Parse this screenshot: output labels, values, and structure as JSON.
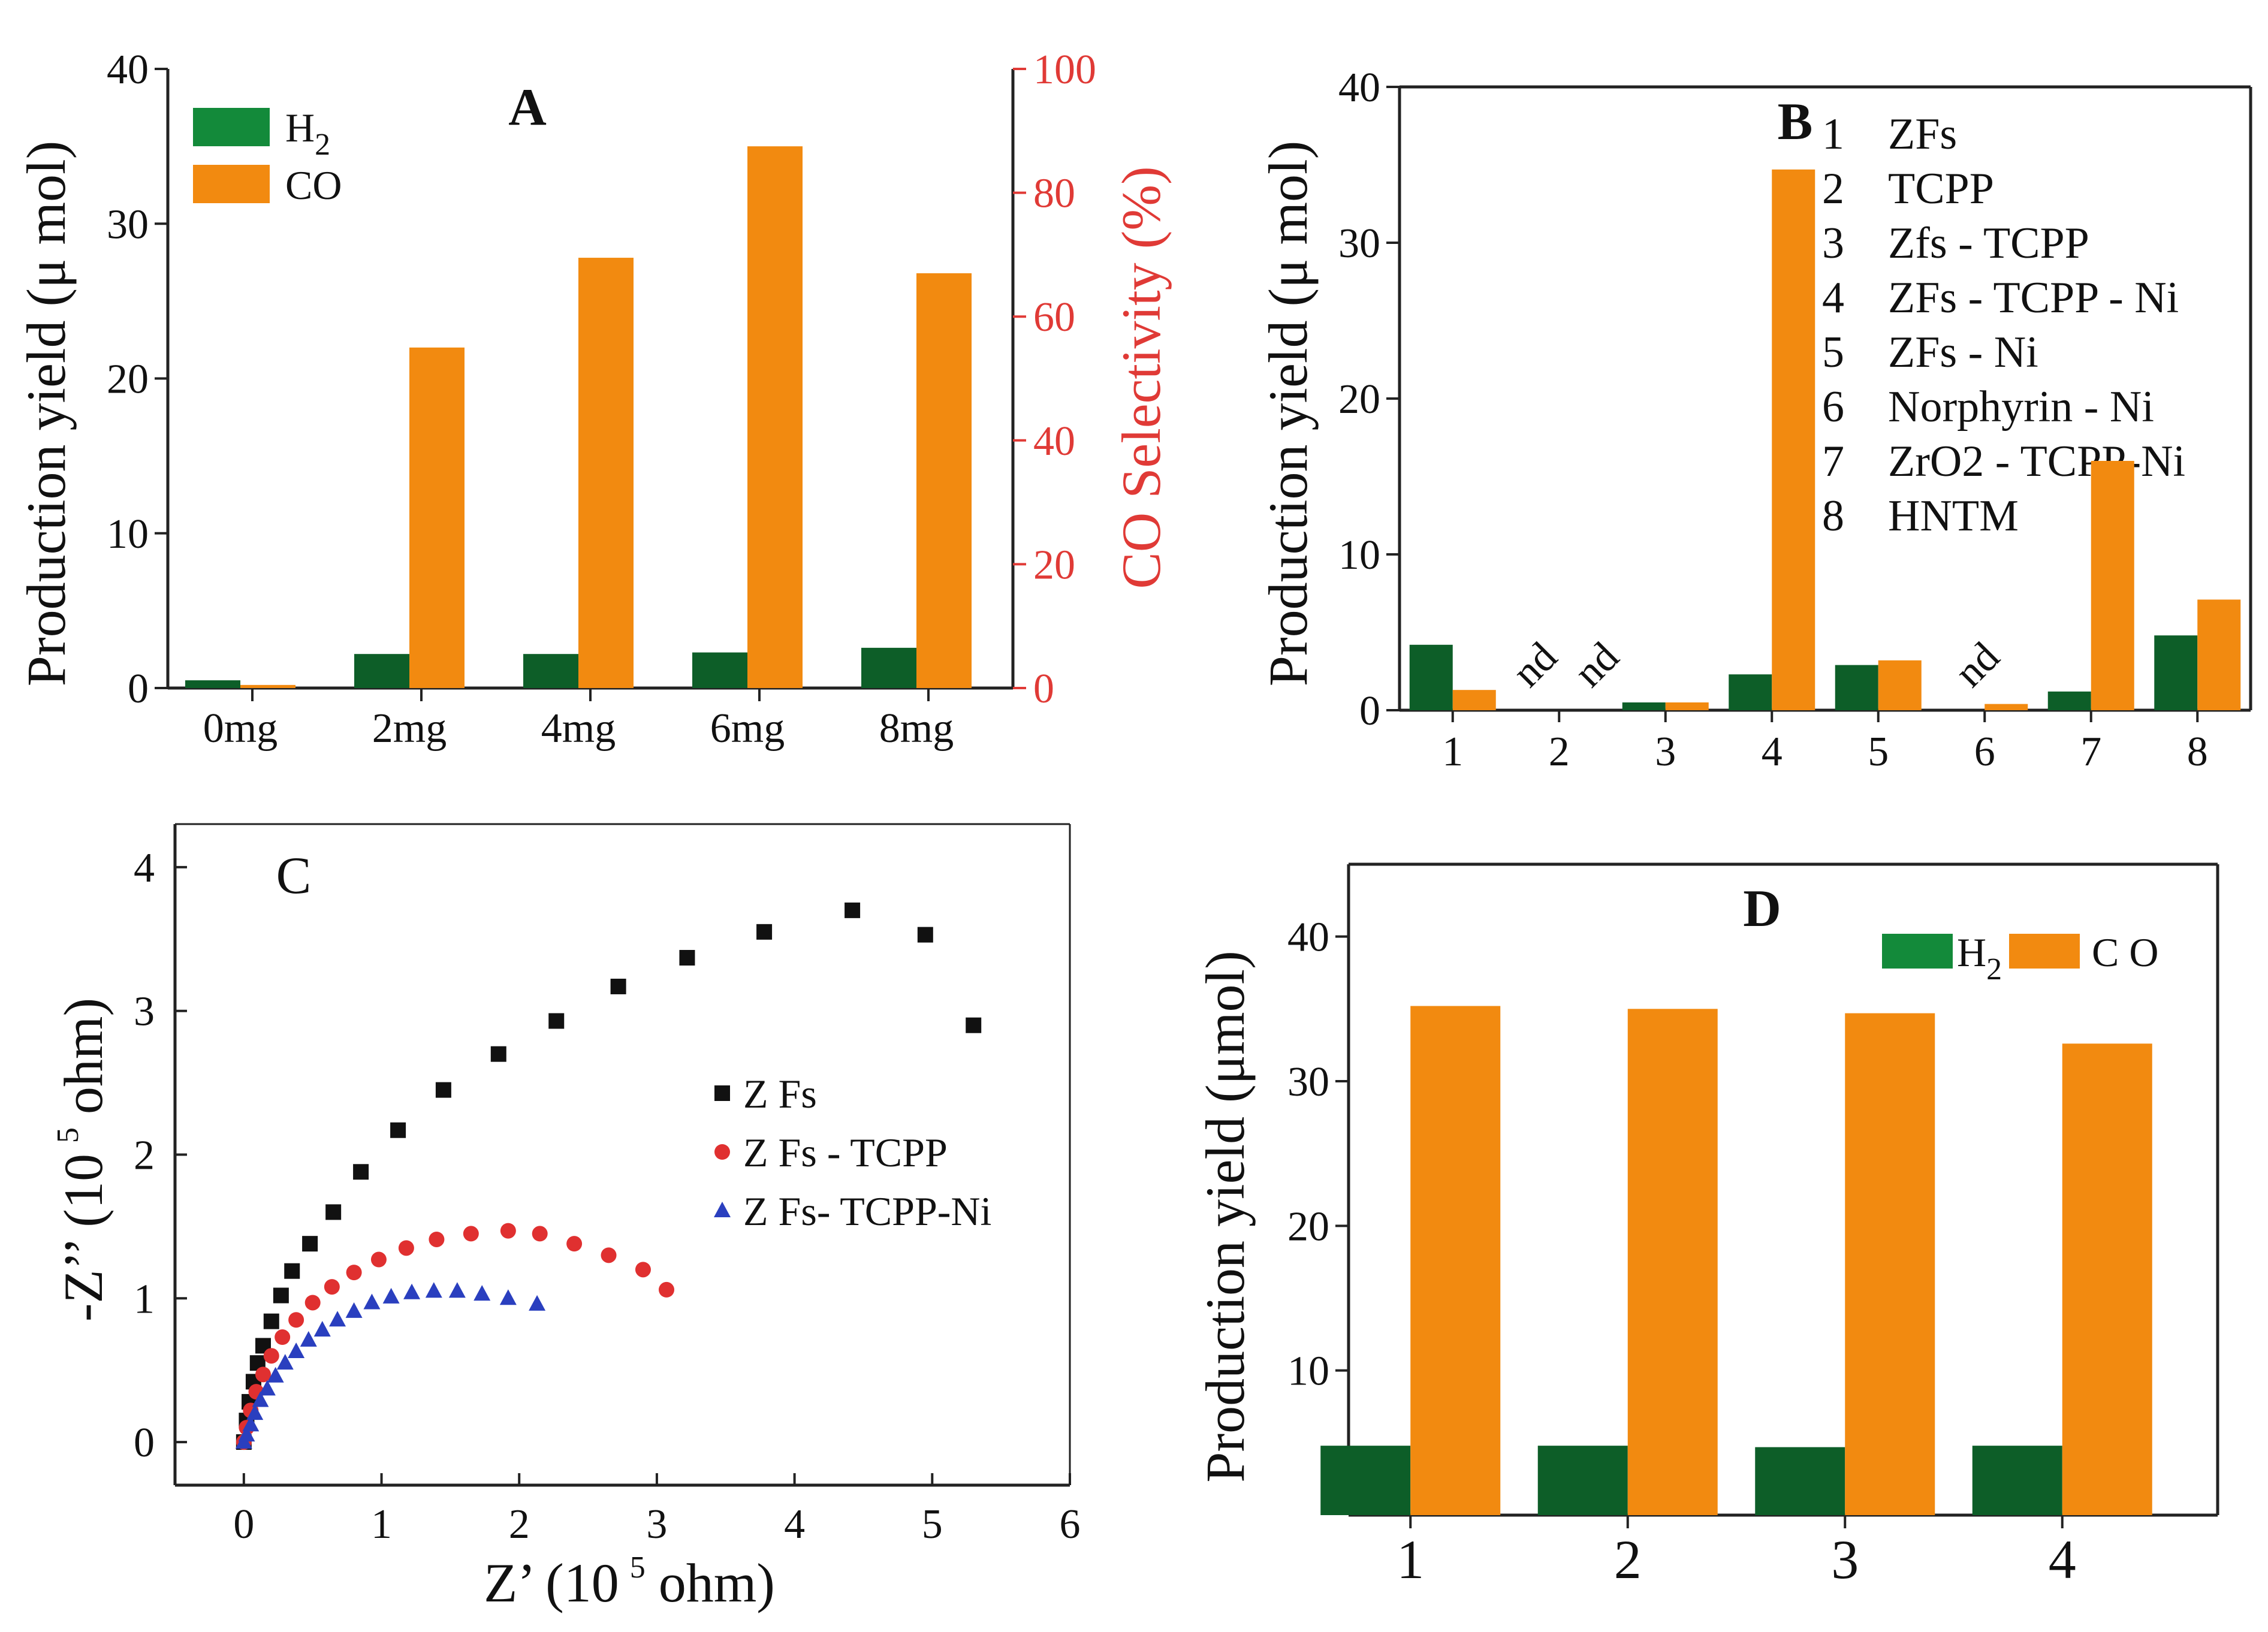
{
  "colors": {
    "h2": "#138a3a",
    "h2_dark": "#0d5e28",
    "co": "#f28a10",
    "selectivity_axis": "#e03a36",
    "zfs": "#111111",
    "tcpp": "#e03030",
    "tcpp_ni": "#2a3fbf"
  },
  "chart_data": [
    {
      "panel": "A",
      "type": "bar",
      "label": "A",
      "categories": [
        "0mg",
        "2mg",
        "4mg",
        "6mg",
        "8mg"
      ],
      "series": [
        {
          "name": "H",
          "sub": "2",
          "key": "h2",
          "values": [
            0.5,
            2.2,
            2.2,
            2.3,
            2.6
          ]
        },
        {
          "name": "CO",
          "key": "co",
          "values": [
            0.2,
            22.0,
            27.8,
            35.0,
            26.8
          ]
        }
      ],
      "ylabel": "Production yield  (μ mol)",
      "ylim": [
        0,
        40
      ],
      "yticks": [
        "0",
        "10",
        "20",
        "30",
        "40"
      ],
      "y2label": "CO Selectivity  (%)",
      "y2lim": [
        0,
        100
      ],
      "y2ticks": [
        "0",
        "20",
        "40",
        "60",
        "80",
        "100"
      ]
    },
    {
      "panel": "B",
      "type": "bar",
      "label": "B",
      "categories": [
        "1",
        "2",
        "3",
        "4",
        "5",
        "6",
        "7",
        "8"
      ],
      "series": [
        {
          "name": "H2",
          "key": "h2",
          "values": [
            4.2,
            0,
            0.5,
            2.3,
            2.9,
            0,
            1.2,
            4.8
          ]
        },
        {
          "name": "CO",
          "key": "co",
          "values": [
            1.3,
            0,
            0.5,
            34.7,
            3.2,
            0.4,
            16.0,
            7.1
          ]
        }
      ],
      "annotations": [
        "nd",
        "nd",
        "nd"
      ],
      "legend": [
        {
          "num": "1",
          "name": "ZFs"
        },
        {
          "num": "2",
          "name": "TCPP"
        },
        {
          "num": "3",
          "name": "Zfs - TCPP"
        },
        {
          "num": "4",
          "name": "ZFs - TCPP - Ni"
        },
        {
          "num": "5",
          "name": "ZFs - Ni"
        },
        {
          "num": "6",
          "name": "Norphyrin - Ni"
        },
        {
          "num": "7",
          "name": "ZrO2 - TCPP-Ni"
        },
        {
          "num": "8",
          "name": "HNTM"
        }
      ],
      "ylabel": "Production yield  (μ mol)",
      "ylim": [
        0,
        40
      ],
      "yticks": [
        "0",
        "10",
        "20",
        "30",
        "40"
      ]
    },
    {
      "panel": "C",
      "type": "scatter",
      "label": "C",
      "series": [
        {
          "name": "Z Fs",
          "key": "zfs",
          "marker": "square",
          "x": [
            0.0,
            0.02,
            0.04,
            0.07,
            0.1,
            0.14,
            0.2,
            0.27,
            0.35,
            0.48,
            0.65,
            0.85,
            1.12,
            1.45,
            1.85,
            2.27,
            2.72,
            3.22,
            3.78,
            4.42,
            4.95,
            5.3
          ],
          "y": [
            0.0,
            0.15,
            0.28,
            0.42,
            0.55,
            0.67,
            0.84,
            1.02,
            1.19,
            1.38,
            1.6,
            1.88,
            2.17,
            2.45,
            2.7,
            2.93,
            3.17,
            3.37,
            3.55,
            3.7,
            3.53,
            2.9
          ]
        },
        {
          "name": "Z Fs - TCPP",
          "key": "tcpp",
          "marker": "circle",
          "x": [
            0.0,
            0.02,
            0.05,
            0.09,
            0.14,
            0.2,
            0.28,
            0.38,
            0.5,
            0.64,
            0.8,
            0.98,
            1.18,
            1.4,
            1.65,
            1.92,
            2.15,
            2.4,
            2.65,
            2.9,
            3.07
          ],
          "y": [
            0.0,
            0.1,
            0.22,
            0.35,
            0.47,
            0.6,
            0.73,
            0.85,
            0.97,
            1.08,
            1.18,
            1.27,
            1.35,
            1.41,
            1.45,
            1.47,
            1.45,
            1.38,
            1.3,
            1.2,
            1.06
          ]
        },
        {
          "name": "Z Fs- TCPP-Ni",
          "key": "tcpp_ni",
          "marker": "triangle",
          "x": [
            0.0,
            0.02,
            0.05,
            0.08,
            0.12,
            0.17,
            0.23,
            0.3,
            0.38,
            0.47,
            0.57,
            0.68,
            0.8,
            0.93,
            1.07,
            1.22,
            1.38,
            1.55,
            1.73,
            1.92,
            2.13
          ],
          "y": [
            0.0,
            0.05,
            0.12,
            0.2,
            0.29,
            0.37,
            0.46,
            0.55,
            0.63,
            0.71,
            0.78,
            0.85,
            0.91,
            0.97,
            1.01,
            1.04,
            1.05,
            1.05,
            1.03,
            1.0,
            0.96
          ]
        }
      ],
      "xlabel": "Z’ (10",
      "xlabel_sup": "5",
      "xlabel_unit": "ohm)",
      "ylabel": "-Z’’ (10",
      "ylabel_sup": "5",
      "ylabel_unit": "ohm)",
      "xlim": [
        -0.5,
        6
      ],
      "ylim": [
        -0.3,
        4.3
      ],
      "xticks": [
        "0",
        "1",
        "2",
        "3",
        "4",
        "5",
        "6"
      ],
      "yticks": [
        "0",
        "1",
        "2",
        "3",
        "4"
      ]
    },
    {
      "panel": "D",
      "type": "bar",
      "label": "D",
      "categories": [
        "1",
        "2",
        "3",
        "4"
      ],
      "series": [
        {
          "name": "H",
          "sub": "2",
          "key": "h2",
          "values": [
            4.8,
            4.8,
            4.7,
            4.8
          ]
        },
        {
          "name": "C O",
          "key": "co",
          "values": [
            35.2,
            35.0,
            34.7,
            32.6
          ]
        }
      ],
      "ylabel": "Production yield (μmol)",
      "ylim": [
        0,
        45
      ],
      "yticks": [
        "10",
        "20",
        "30",
        "40"
      ]
    }
  ]
}
